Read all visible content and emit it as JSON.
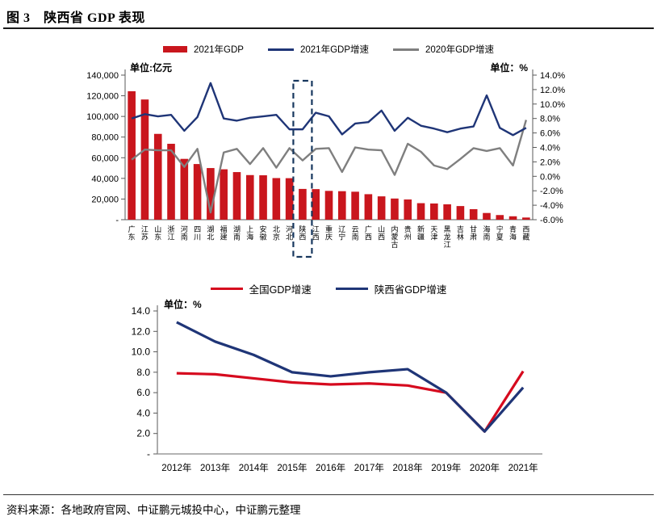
{
  "page": {
    "title": "图 3　陕西省 GDP 表现",
    "source": "资料来源：各地政府官网、中证鹏元城投中心，中证鹏元整理"
  },
  "colors": {
    "bar_red": "#C9161D",
    "navy": "#1F3577",
    "gray": "#7F7F7F",
    "national_red": "#D60A1E",
    "highlight_box": "#17375E",
    "axis": "#595959",
    "text": "#000000"
  },
  "chart_data": [
    {
      "type": "bar",
      "title": "",
      "unit_left": "单位:亿元",
      "unit_right": "单位：%",
      "legend_position": "top-center",
      "grid": false,
      "highlight_category": "陕西",
      "categories": [
        "广东",
        "江苏",
        "山东",
        "浙江",
        "河南",
        "四川",
        "湖北",
        "福建",
        "湖南",
        "上海",
        "安徽",
        "北京",
        "河北",
        "陕西",
        "江西",
        "重庆",
        "辽宁",
        "云南",
        "广西",
        "山西",
        "内蒙古",
        "贵州",
        "新疆",
        "天津",
        "黑龙江",
        "吉林",
        "甘肃",
        "海南",
        "宁夏",
        "青海",
        "西藏"
      ],
      "series": [
        {
          "name": "2021年GDP",
          "type": "bar",
          "axis": "left",
          "color": "#C9161D",
          "values": [
            124400,
            116400,
            83100,
            73500,
            58900,
            53900,
            50000,
            48800,
            46100,
            43200,
            43000,
            40300,
            40200,
            29800,
            29600,
            27900,
            27600,
            27100,
            24700,
            22600,
            20500,
            19600,
            16000,
            15700,
            14900,
            13200,
            10200,
            6500,
            4500,
            3300,
            2100
          ]
        },
        {
          "name": "2021年GDP增速",
          "type": "line",
          "axis": "right",
          "color": "#1F3577",
          "values": [
            8.0,
            8.6,
            8.3,
            8.5,
            6.3,
            8.2,
            12.9,
            8.0,
            7.7,
            8.1,
            8.3,
            8.5,
            6.5,
            6.5,
            8.8,
            8.3,
            5.8,
            7.3,
            7.5,
            9.1,
            6.3,
            8.1,
            7.0,
            6.6,
            6.1,
            6.6,
            6.9,
            11.2,
            6.7,
            5.7,
            6.7
          ]
        },
        {
          "name": "2020年GDP增速",
          "type": "line",
          "axis": "right",
          "color": "#7F7F7F",
          "values": [
            2.3,
            3.7,
            3.6,
            3.6,
            1.3,
            3.8,
            -5.0,
            3.3,
            3.8,
            1.7,
            3.9,
            1.2,
            3.9,
            2.2,
            3.8,
            3.9,
            0.6,
            4.0,
            3.7,
            3.6,
            0.2,
            4.5,
            3.4,
            1.5,
            1.0,
            2.4,
            3.9,
            3.5,
            3.9,
            1.5,
            7.8
          ]
        }
      ],
      "left_axis": {
        "min": 0,
        "max": 140000,
        "ticks": [
          "140,000",
          "120,000",
          "100,000",
          "80,000",
          "60,000",
          "40,000",
          "20,000",
          "-"
        ]
      },
      "right_axis": {
        "min": -6,
        "max": 14,
        "ticks": [
          "14.0%",
          "12.0%",
          "10.0%",
          "8.0%",
          "6.0%",
          "4.0%",
          "2.0%",
          "0.0%",
          "-2.0%",
          "-4.0%",
          "-6.0%"
        ]
      }
    },
    {
      "type": "line",
      "title": "",
      "unit": "单位：%",
      "legend_position": "top-center",
      "grid": false,
      "categories": [
        "2012年",
        "2013年",
        "2014年",
        "2015年",
        "2016年",
        "2017年",
        "2018年",
        "2019年",
        "2020年",
        "2021年"
      ],
      "series": [
        {
          "name": "全国GDP增速",
          "type": "line",
          "color": "#D60A1E",
          "values": [
            7.9,
            7.8,
            7.4,
            7.0,
            6.8,
            6.9,
            6.7,
            6.0,
            2.2,
            8.1
          ]
        },
        {
          "name": "陕西省GDP增速",
          "type": "line",
          "color": "#1F3577",
          "values": [
            12.9,
            11.0,
            9.7,
            8.0,
            7.6,
            8.0,
            8.3,
            6.0,
            2.2,
            6.5
          ]
        }
      ],
      "y_axis": {
        "min": 0,
        "max": 14,
        "ticks": [
          "14.0",
          "12.0",
          "10.0",
          "8.0",
          "6.0",
          "4.0",
          "2.0",
          "-"
        ]
      }
    }
  ]
}
